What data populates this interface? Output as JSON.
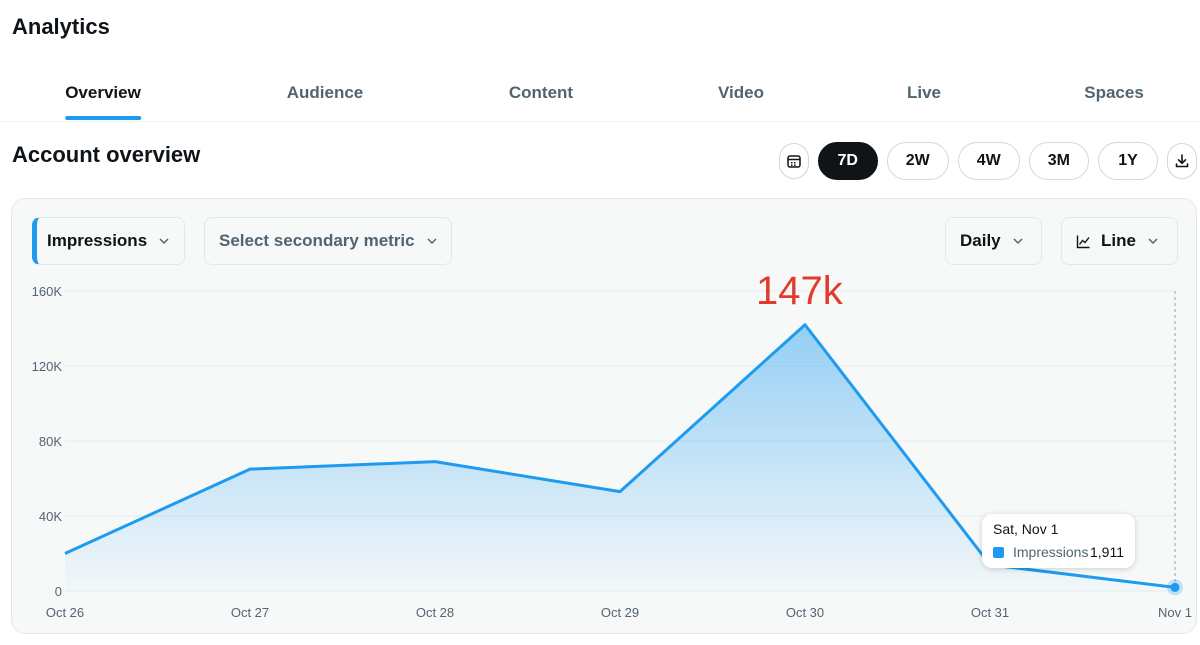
{
  "page": {
    "title": "Analytics"
  },
  "tabs": [
    {
      "label": "Overview",
      "active": true
    },
    {
      "label": "Audience",
      "active": false
    },
    {
      "label": "Content",
      "active": false
    },
    {
      "label": "Video",
      "active": false
    },
    {
      "label": "Live",
      "active": false
    },
    {
      "label": "Spaces",
      "active": false
    }
  ],
  "section": {
    "title": "Account overview"
  },
  "range": {
    "calendar_icon": "calendar-icon",
    "download_icon": "download-icon",
    "options": [
      "7D",
      "2W",
      "4W",
      "3M",
      "1Y"
    ],
    "selected": "7D"
  },
  "controls": {
    "primary_metric": "Impressions",
    "secondary_metric": "Select secondary metric",
    "interval": "Daily",
    "chart_style": "Line",
    "chart_style_icon": "line-chart-icon",
    "chevron_icon": "chevron-down-icon"
  },
  "annotation": {
    "text": "147k",
    "color": "#e23b2e"
  },
  "tooltip": {
    "date": "Sat, Nov 1",
    "metric": "Impressions",
    "value": "1,911"
  },
  "colors": {
    "accent": "#1d9bf0",
    "text": "#0f1419",
    "muted": "#536471"
  },
  "chart_data": {
    "type": "area",
    "categories": [
      "Oct 26",
      "Oct 27",
      "Oct 28",
      "Oct 29",
      "Oct 30",
      "Oct 31",
      "Nov 1"
    ],
    "series": [
      {
        "name": "Impressions",
        "values": [
          20000,
          65000,
          69000,
          53000,
          142000,
          14000,
          1911
        ]
      }
    ],
    "yticks": [
      "0",
      "40K",
      "80K",
      "120K",
      "160K"
    ],
    "ylim": [
      0,
      160000
    ],
    "grid": true,
    "highlight_index": 6
  }
}
